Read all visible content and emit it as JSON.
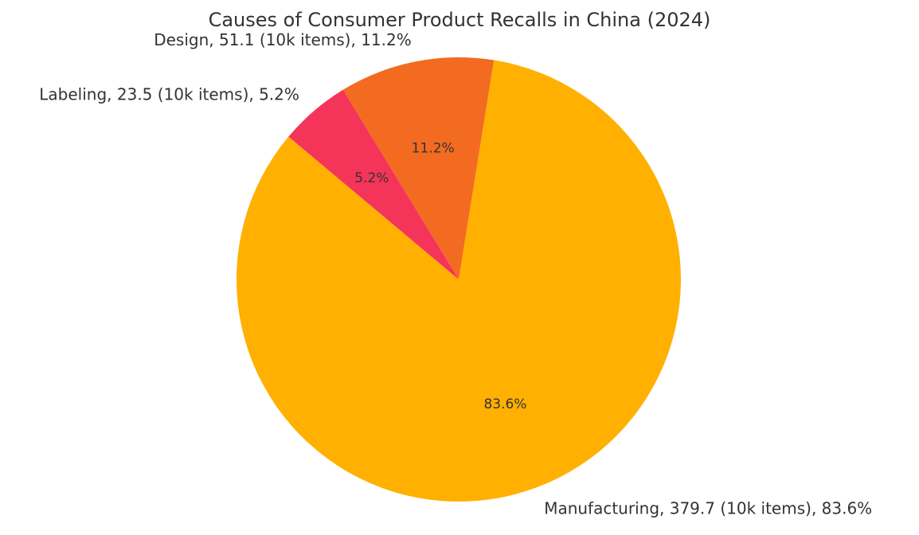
{
  "chart_data": {
    "type": "pie",
    "title": "Causes of Consumer Product Recalls in China (2024)",
    "unit": "10k items",
    "start_angle_deg": 140,
    "direction": "counterclockwise",
    "slices": [
      {
        "label": "Manufacturing",
        "value": 379.7,
        "percent": 83.6,
        "outer_label": "Manufacturing, 379.7 (10k items), 83.6%",
        "pct_label": "83.6%",
        "color": "#FFB000"
      },
      {
        "label": "Design",
        "value": 51.1,
        "percent": 11.2,
        "outer_label": "Design, 51.1 (10k items), 11.2%",
        "pct_label": "11.2%",
        "color": "#F26B21"
      },
      {
        "label": "Labeling",
        "value": 23.5,
        "percent": 5.2,
        "outer_label": "Labeling, 23.5 (10k items), 5.2%",
        "pct_label": "5.2%",
        "color": "#F5345A"
      }
    ]
  }
}
